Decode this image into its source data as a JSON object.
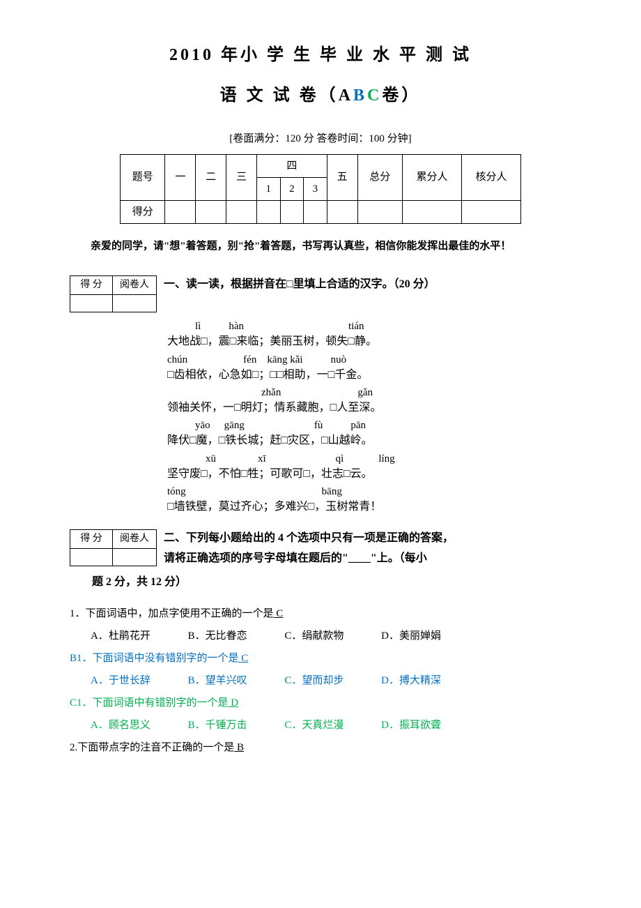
{
  "title": {
    "main": "2010 年小 学 生 毕 业 水 平 测 试",
    "sub_prefix": "语  文  试   卷（A",
    "sub_b": "B",
    "sub_c": "C",
    "sub_suffix": "卷）"
  },
  "exam_info": "[卷面满分：120 分    答卷时间：100 分钟]",
  "score_table": {
    "headers": [
      "题号",
      "一",
      "二",
      "三",
      "四",
      "五",
      "总分",
      "累分人",
      "核分人"
    ],
    "sub_four": [
      "1",
      "2",
      "3"
    ],
    "score_label": "得分"
  },
  "intro": "亲爱的同学，请\"想\"着答题，别\"抢\"着答题，书写再认真些，相信你能发挥出最佳的水平！",
  "grader": {
    "score": "得 分",
    "person": "阅卷人"
  },
  "section1": {
    "title": "一、读一读，根据拼音在□里填上合适的汉字。（20 分）",
    "lines": [
      {
        "pinyin_parts": [
          {
            "t": "lì",
            "ml": 40
          },
          {
            "t": "hàn",
            "ml": 40
          },
          {
            "t": "tián",
            "ml": 150
          }
        ],
        "hanzi": "大地战□，震□来临；美丽玉树，顿失□静。"
      },
      {
        "pinyin_parts": [
          {
            "t": "chún",
            "ml": 0
          },
          {
            "t": "fén",
            "ml": 80
          },
          {
            "t": "kāng kǎi",
            "ml": 15
          },
          {
            "t": "nuò",
            "ml": 40
          }
        ],
        "hanzi": "□齿相依，心急如□；□□相助，一□千金。"
      },
      {
        "pinyin_parts": [
          {
            "t": "zhǎn",
            "ml": 135
          },
          {
            "t": "gǎn",
            "ml": 110
          }
        ],
        "hanzi": "领袖关怀，一□明灯；情系藏胞，□人至深。"
      },
      {
        "pinyin_parts": [
          {
            "t": "yāo",
            "ml": 40
          },
          {
            "t": "gāng",
            "ml": 20
          },
          {
            "t": "fù",
            "ml": 100
          },
          {
            "t": "pān",
            "ml": 40
          }
        ],
        "hanzi": "降伏□魔，□铁长城；赶□灾区，□山越岭。"
      },
      {
        "pinyin_parts": [
          {
            "t": "xū",
            "ml": 55
          },
          {
            "t": "xī",
            "ml": 60
          },
          {
            "t": "qì",
            "ml": 100
          },
          {
            "t": "líng",
            "ml": 50
          }
        ],
        "hanzi": "坚守废□，不怕□牲；可歌可□，壮志□云。"
      },
      {
        "pinyin_parts": [
          {
            "t": "tóng",
            "ml": 0
          },
          {
            "t": "bāng",
            "ml": 195
          }
        ],
        "hanzi": "□墙铁壁，莫过齐心；多难兴□，玉树常青！"
      }
    ]
  },
  "section2": {
    "title_part1": "二、下列每小题给出的 4 个选项中只有一项是正确的答案，",
    "title_part2": "请将正确选项的序号字母填在题后的\"____\"上。（每小",
    "title_part3": "题 2 分，共 12 分）",
    "q1": {
      "stem": "1．下面词语中，加点字使用不正确的一个是",
      "answer": "   C   ",
      "opts": [
        "A．杜鹃花开",
        "B．无比眷恋",
        "C．绢献款物",
        "D．美丽婵娟"
      ]
    },
    "qB1": {
      "stem": "B1．下面词语中没有错别字的一个是",
      "answer": "   C    ",
      "opts": [
        "A．于世长辞",
        "B．望羊兴叹",
        "C．望而却步",
        "D．搏大精深"
      ]
    },
    "qC1": {
      "stem": "C1．下面词语中有错别字的一个是",
      "answer": "   D    ",
      "opts": [
        "A．顾名思义",
        "B．千锤万击",
        "C．天真烂漫",
        "D．振耳欲聋"
      ]
    },
    "q2": {
      "stem": "2.下面带点字的注音不正确的一个是",
      "answer": "   B    "
    }
  }
}
